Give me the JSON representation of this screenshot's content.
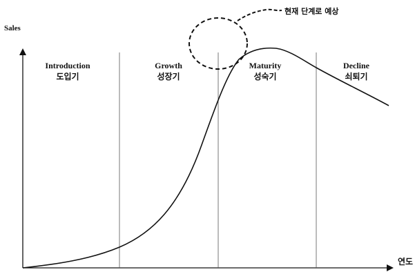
{
  "axes": {
    "y_label": "Sales",
    "x_label": "연도"
  },
  "stages": [
    {
      "name_en": "Introduction",
      "name_ko": "도입기"
    },
    {
      "name_en": "Growth",
      "name_ko": "성장기"
    },
    {
      "name_en": "Maturity",
      "name_ko": "성숙기"
    },
    {
      "name_en": "Decline",
      "name_ko": "쇠퇴기"
    }
  ],
  "annotation": {
    "text": "현재 단계로 예상"
  },
  "colors": {
    "line": "#111111",
    "background": "#ffffff"
  }
}
